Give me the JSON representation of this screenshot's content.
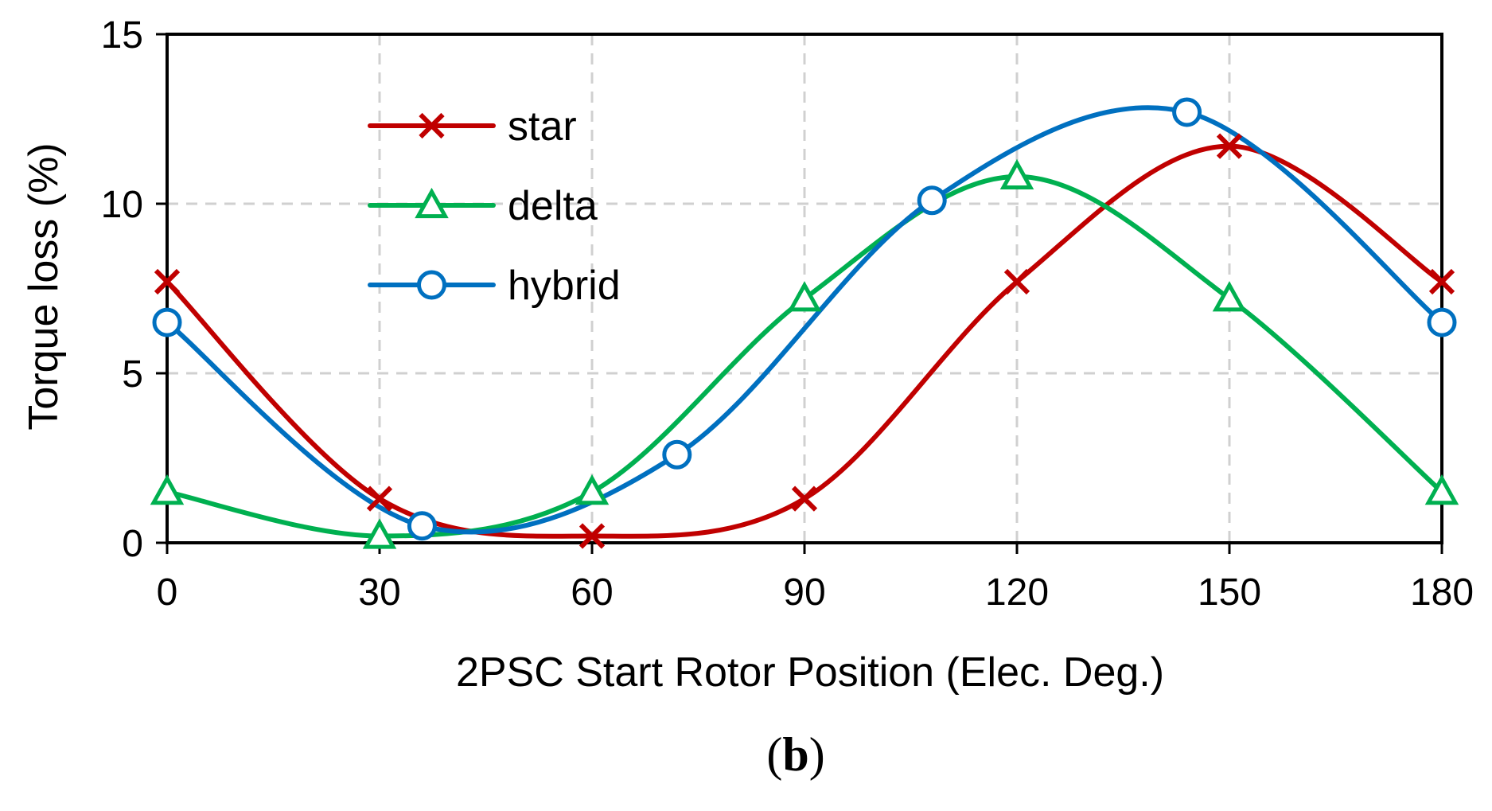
{
  "chart_data": {
    "type": "line",
    "title": "",
    "xlabel": "2PSC Start Rotor Position (Elec. Deg.)",
    "ylabel": "Torque loss (%)",
    "xlim": [
      0,
      180
    ],
    "ylim": [
      0,
      15
    ],
    "x_ticks": [
      "0",
      "30",
      "60",
      "90",
      "120",
      "150",
      "180"
    ],
    "y_ticks": [
      "0",
      "5",
      "10",
      "15"
    ],
    "grid": true,
    "legend_position": "top-left",
    "series": [
      {
        "name": "star",
        "color": "#C00000",
        "marker": "x",
        "x": [
          0,
          30,
          60,
          90,
          120,
          150,
          180
        ],
        "y": [
          7.7,
          1.3,
          0.2,
          1.3,
          7.7,
          11.7,
          7.7
        ]
      },
      {
        "name": "delta",
        "color": "#00B050",
        "marker": "triangle",
        "x": [
          0,
          30,
          60,
          90,
          120,
          150,
          180
        ],
        "y": [
          1.5,
          0.2,
          1.5,
          7.2,
          10.8,
          7.2,
          1.5
        ]
      },
      {
        "name": "hybrid",
        "color": "#0070C0",
        "marker": "circle",
        "x": [
          0,
          36,
          72,
          108,
          144,
          180
        ],
        "y": [
          6.5,
          0.5,
          2.6,
          10.1,
          12.7,
          6.5
        ]
      }
    ]
  },
  "caption": {
    "open": "(",
    "letter": "b",
    "close": ")"
  }
}
